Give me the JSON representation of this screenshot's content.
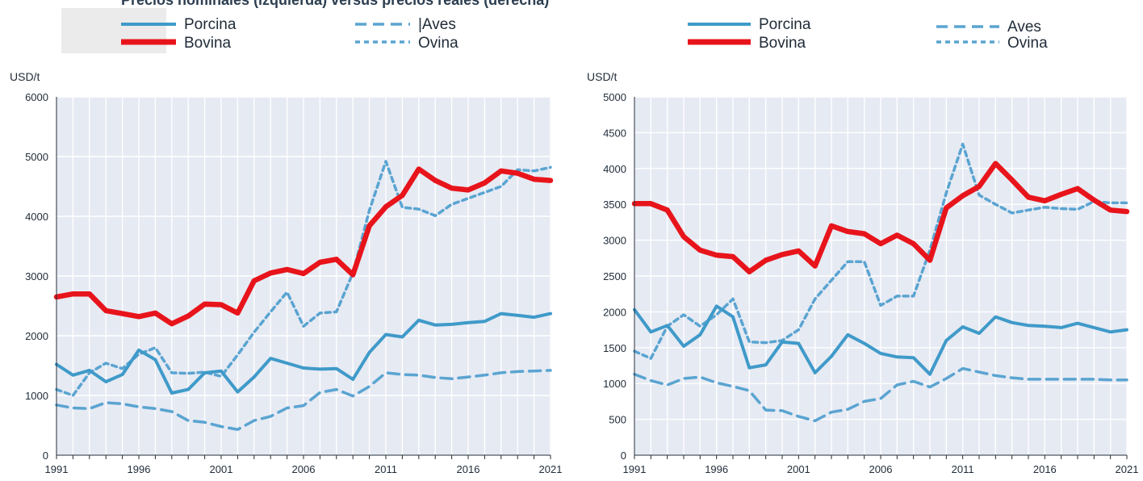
{
  "header": {
    "title_fragment": "Precios nominales (izquierda) versus precios reales (derecha)"
  },
  "colors": {
    "plot_background": "#e6eaf3",
    "grid": "#ffffff",
    "pork": "#3f9ac9",
    "beef": "#e8141b",
    "poultry": "#5aa4d1",
    "sheep": "#5aa4d1",
    "axis_text": "#1f2b38"
  },
  "chart_data": [
    {
      "type": "line",
      "ylabel": "USD/t",
      "ylim": [
        0,
        6000
      ],
      "yticks": [
        0,
        1000,
        2000,
        3000,
        4000,
        5000,
        6000
      ],
      "xlim": [
        1991,
        2021
      ],
      "xticks": [
        1991,
        1996,
        2001,
        2006,
        2011,
        2016,
        2021
      ],
      "grid": true,
      "legend": {
        "placement": "top",
        "items": [
          "Porcina",
          "Bovina",
          "Aves",
          "Ovina"
        ],
        "aves_label_text": "|Aves"
      },
      "series": [
        {
          "name": "Porcina",
          "style": "solid",
          "x": [
            1991,
            1992,
            1993,
            1994,
            1995,
            1996,
            1997,
            1998,
            1999,
            2000,
            2001,
            2002,
            2003,
            2004,
            2005,
            2006,
            2007,
            2008,
            2009,
            2010,
            2011,
            2012,
            2013,
            2014,
            2015,
            2016,
            2017,
            2018,
            2019,
            2020,
            2021
          ],
          "y": [
            1520,
            1340,
            1420,
            1230,
            1350,
            1760,
            1600,
            1040,
            1100,
            1380,
            1410,
            1060,
            1310,
            1620,
            1540,
            1460,
            1440,
            1450,
            1270,
            1720,
            2020,
            1980,
            2260,
            2180,
            2190,
            2220,
            2240,
            2370,
            2340,
            2310,
            2370
          ]
        },
        {
          "name": "Bovina",
          "style": "thick",
          "x": [
            1991,
            1992,
            1993,
            1994,
            1995,
            1996,
            1997,
            1998,
            1999,
            2000,
            2001,
            2002,
            2003,
            2004,
            2005,
            2006,
            2007,
            2008,
            2009,
            2010,
            2011,
            2012,
            2013,
            2014,
            2015,
            2016,
            2017,
            2018,
            2019,
            2020,
            2021
          ],
          "y": [
            2650,
            2700,
            2700,
            2420,
            2370,
            2320,
            2380,
            2200,
            2330,
            2530,
            2520,
            2380,
            2920,
            3050,
            3110,
            3040,
            3230,
            3280,
            3020,
            3840,
            4160,
            4350,
            4790,
            4600,
            4470,
            4440,
            4560,
            4760,
            4720,
            4620,
            4600
          ]
        },
        {
          "name": "Aves",
          "style": "dashed",
          "x": [
            1991,
            1992,
            1993,
            1994,
            1995,
            1996,
            1997,
            1998,
            1999,
            2000,
            2001,
            2002,
            2003,
            2004,
            2005,
            2006,
            2007,
            2008,
            2009,
            2010,
            2011,
            2012,
            2013,
            2014,
            2015,
            2016,
            2017,
            2018,
            2019,
            2020,
            2021
          ],
          "y": [
            840,
            790,
            780,
            880,
            860,
            810,
            780,
            730,
            580,
            550,
            480,
            430,
            580,
            650,
            790,
            830,
            1050,
            1100,
            990,
            1150,
            1380,
            1350,
            1340,
            1300,
            1280,
            1310,
            1340,
            1380,
            1400,
            1410,
            1420
          ]
        },
        {
          "name": "Ovina",
          "style": "dotted",
          "x": [
            1991,
            1992,
            1993,
            1994,
            1995,
            1996,
            1997,
            1998,
            1999,
            2000,
            2001,
            2002,
            2003,
            2004,
            2005,
            2006,
            2007,
            2008,
            2009,
            2010,
            2011,
            2012,
            2013,
            2014,
            2015,
            2016,
            2017,
            2018,
            2019,
            2020,
            2021
          ],
          "y": [
            1100,
            1000,
            1380,
            1540,
            1450,
            1690,
            1800,
            1380,
            1370,
            1390,
            1320,
            1680,
            2060,
            2400,
            2730,
            2160,
            2380,
            2400,
            3050,
            4100,
            4920,
            4150,
            4120,
            4010,
            4200,
            4300,
            4400,
            4500,
            4780,
            4760,
            4820
          ]
        }
      ]
    },
    {
      "type": "line",
      "ylabel": "USD/t",
      "ylim": [
        0,
        5000
      ],
      "yticks": [
        0,
        500,
        1000,
        1500,
        2000,
        2500,
        3000,
        3500,
        4000,
        4500,
        5000
      ],
      "xlim": [
        1991,
        2021
      ],
      "xticks": [
        1991,
        1996,
        2001,
        2006,
        2011,
        2016,
        2021
      ],
      "grid": true,
      "legend": {
        "placement": "top",
        "items": [
          "Porcina",
          "Bovina",
          "Aves",
          "Ovina"
        ],
        "aves_label_text": "Aves"
      },
      "series": [
        {
          "name": "Porcina",
          "style": "solid",
          "x": [
            1991,
            1992,
            1993,
            1994,
            1995,
            1996,
            1997,
            1998,
            1999,
            2000,
            2001,
            2002,
            2003,
            2004,
            2005,
            2006,
            2007,
            2008,
            2009,
            2010,
            2011,
            2012,
            2013,
            2014,
            2015,
            2016,
            2017,
            2018,
            2019,
            2020,
            2021
          ],
          "y": [
            2030,
            1720,
            1810,
            1520,
            1680,
            2080,
            1930,
            1220,
            1260,
            1580,
            1560,
            1150,
            1380,
            1680,
            1560,
            1420,
            1370,
            1360,
            1130,
            1600,
            1790,
            1700,
            1930,
            1850,
            1810,
            1800,
            1780,
            1840,
            1780,
            1720,
            1750
          ]
        },
        {
          "name": "Bovina",
          "style": "thick",
          "x": [
            1991,
            1992,
            1993,
            1994,
            1995,
            1996,
            1997,
            1998,
            1999,
            2000,
            2001,
            2002,
            2003,
            2004,
            2005,
            2006,
            2007,
            2008,
            2009,
            2010,
            2011,
            2012,
            2013,
            2014,
            2015,
            2016,
            2017,
            2018,
            2019,
            2020,
            2021
          ],
          "y": [
            3510,
            3510,
            3420,
            3050,
            2860,
            2790,
            2770,
            2560,
            2720,
            2800,
            2850,
            2640,
            3200,
            3120,
            3090,
            2950,
            3070,
            2950,
            2720,
            3450,
            3620,
            3750,
            4070,
            3840,
            3600,
            3550,
            3640,
            3720,
            3560,
            3420,
            3400
          ]
        },
        {
          "name": "Aves",
          "style": "dashed",
          "x": [
            1991,
            1992,
            1993,
            1994,
            1995,
            1996,
            1997,
            1998,
            1999,
            2000,
            2001,
            2002,
            2003,
            2004,
            2005,
            2006,
            2007,
            2008,
            2009,
            2010,
            2011,
            2012,
            2013,
            2014,
            2015,
            2016,
            2017,
            2018,
            2019,
            2020,
            2021
          ],
          "y": [
            1130,
            1040,
            980,
            1070,
            1090,
            1010,
            960,
            900,
            630,
            620,
            540,
            480,
            600,
            640,
            750,
            790,
            980,
            1030,
            950,
            1070,
            1210,
            1160,
            1110,
            1080,
            1060,
            1060,
            1060,
            1060,
            1060,
            1050,
            1050
          ]
        },
        {
          "name": "Ovina",
          "style": "dotted",
          "x": [
            1991,
            1992,
            1993,
            1994,
            1995,
            1996,
            1997,
            1998,
            1999,
            2000,
            2001,
            2002,
            2003,
            2004,
            2005,
            2006,
            2007,
            2008,
            2009,
            2010,
            2011,
            2012,
            2013,
            2014,
            2015,
            2016,
            2017,
            2018,
            2019,
            2020,
            2021
          ],
          "y": [
            1450,
            1350,
            1800,
            1960,
            1800,
            1960,
            2180,
            1580,
            1570,
            1600,
            1750,
            2180,
            2440,
            2700,
            2700,
            2090,
            2220,
            2220,
            2860,
            3660,
            4340,
            3630,
            3500,
            3380,
            3420,
            3460,
            3440,
            3430,
            3540,
            3520,
            3520
          ]
        }
      ]
    }
  ]
}
